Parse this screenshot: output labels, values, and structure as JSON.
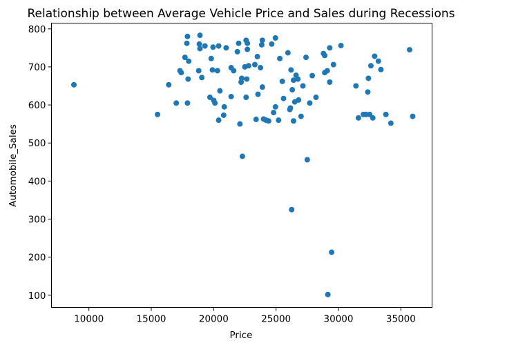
{
  "chart_data": {
    "type": "scatter",
    "title": "Relationship between Average Vehicle Price and Sales during Recessions",
    "xlabel": "Price",
    "ylabel": "Automobile_Sales",
    "xlim": [
      7000,
      37500
    ],
    "ylim": [
      68,
      815
    ],
    "xticks": [
      10000,
      15000,
      20000,
      25000,
      30000,
      35000
    ],
    "yticks": [
      100,
      200,
      300,
      400,
      500,
      600,
      700,
      800
    ],
    "grid": false,
    "marker_color": "#1f77b4",
    "series": [
      {
        "points": [
          [
            8800,
            653
          ],
          [
            15500,
            575
          ],
          [
            16400,
            653
          ],
          [
            17000,
            605
          ],
          [
            17300,
            690
          ],
          [
            17400,
            685
          ],
          [
            17700,
            725
          ],
          [
            17850,
            762
          ],
          [
            17900,
            605
          ],
          [
            17900,
            780
          ],
          [
            17950,
            668
          ],
          [
            18000,
            715
          ],
          [
            18800,
            690
          ],
          [
            18850,
            760
          ],
          [
            18900,
            783
          ],
          [
            18900,
            748
          ],
          [
            19050,
            672
          ],
          [
            19300,
            755
          ],
          [
            19700,
            620
          ],
          [
            19800,
            722
          ],
          [
            19900,
            692
          ],
          [
            19950,
            752
          ],
          [
            20000,
            612
          ],
          [
            20100,
            605
          ],
          [
            20300,
            690
          ],
          [
            20400,
            755
          ],
          [
            20500,
            637
          ],
          [
            20400,
            560
          ],
          [
            20800,
            573
          ],
          [
            20850,
            595
          ],
          [
            21000,
            750
          ],
          [
            21400,
            698
          ],
          [
            21600,
            690
          ],
          [
            21400,
            622
          ],
          [
            21900,
            740
          ],
          [
            22000,
            762
          ],
          [
            22100,
            550
          ],
          [
            22200,
            660
          ],
          [
            22250,
            670
          ],
          [
            22300,
            465
          ],
          [
            22500,
            700
          ],
          [
            22600,
            770
          ],
          [
            22600,
            620
          ],
          [
            22650,
            668
          ],
          [
            22700,
            746
          ],
          [
            22700,
            762
          ],
          [
            22800,
            703
          ],
          [
            23300,
            706
          ],
          [
            23400,
            562
          ],
          [
            23550,
            628
          ],
          [
            23500,
            727
          ],
          [
            23750,
            698
          ],
          [
            23850,
            758
          ],
          [
            23900,
            770
          ],
          [
            23900,
            647
          ],
          [
            24000,
            563
          ],
          [
            24200,
            560
          ],
          [
            24400,
            558
          ],
          [
            24650,
            760
          ],
          [
            24800,
            580
          ],
          [
            24950,
            595
          ],
          [
            24950,
            776
          ],
          [
            25200,
            560
          ],
          [
            25300,
            722
          ],
          [
            25500,
            662
          ],
          [
            25600,
            617
          ],
          [
            25950,
            737
          ],
          [
            26100,
            588
          ],
          [
            26150,
            592
          ],
          [
            26200,
            692
          ],
          [
            26250,
            325
          ],
          [
            26300,
            640
          ],
          [
            26400,
            558
          ],
          [
            26400,
            665
          ],
          [
            26500,
            608
          ],
          [
            26600,
            678
          ],
          [
            26750,
            668
          ],
          [
            26800,
            613
          ],
          [
            27000,
            570
          ],
          [
            27150,
            650
          ],
          [
            27400,
            725
          ],
          [
            27500,
            456
          ],
          [
            27700,
            605
          ],
          [
            27900,
            677
          ],
          [
            28200,
            620
          ],
          [
            28800,
            735
          ],
          [
            28900,
            730
          ],
          [
            28900,
            685
          ],
          [
            29100,
            690
          ],
          [
            29150,
            102
          ],
          [
            29300,
            660
          ],
          [
            29300,
            750
          ],
          [
            29450,
            213
          ],
          [
            29600,
            706
          ],
          [
            30200,
            756
          ],
          [
            31400,
            650
          ],
          [
            31600,
            566
          ],
          [
            32000,
            575
          ],
          [
            32200,
            575
          ],
          [
            32400,
            670
          ],
          [
            32350,
            634
          ],
          [
            32500,
            575
          ],
          [
            32600,
            703
          ],
          [
            32750,
            566
          ],
          [
            32900,
            728
          ],
          [
            33200,
            715
          ],
          [
            33400,
            693
          ],
          [
            33800,
            575
          ],
          [
            34200,
            552
          ],
          [
            35700,
            745
          ],
          [
            35950,
            570
          ]
        ]
      }
    ]
  }
}
